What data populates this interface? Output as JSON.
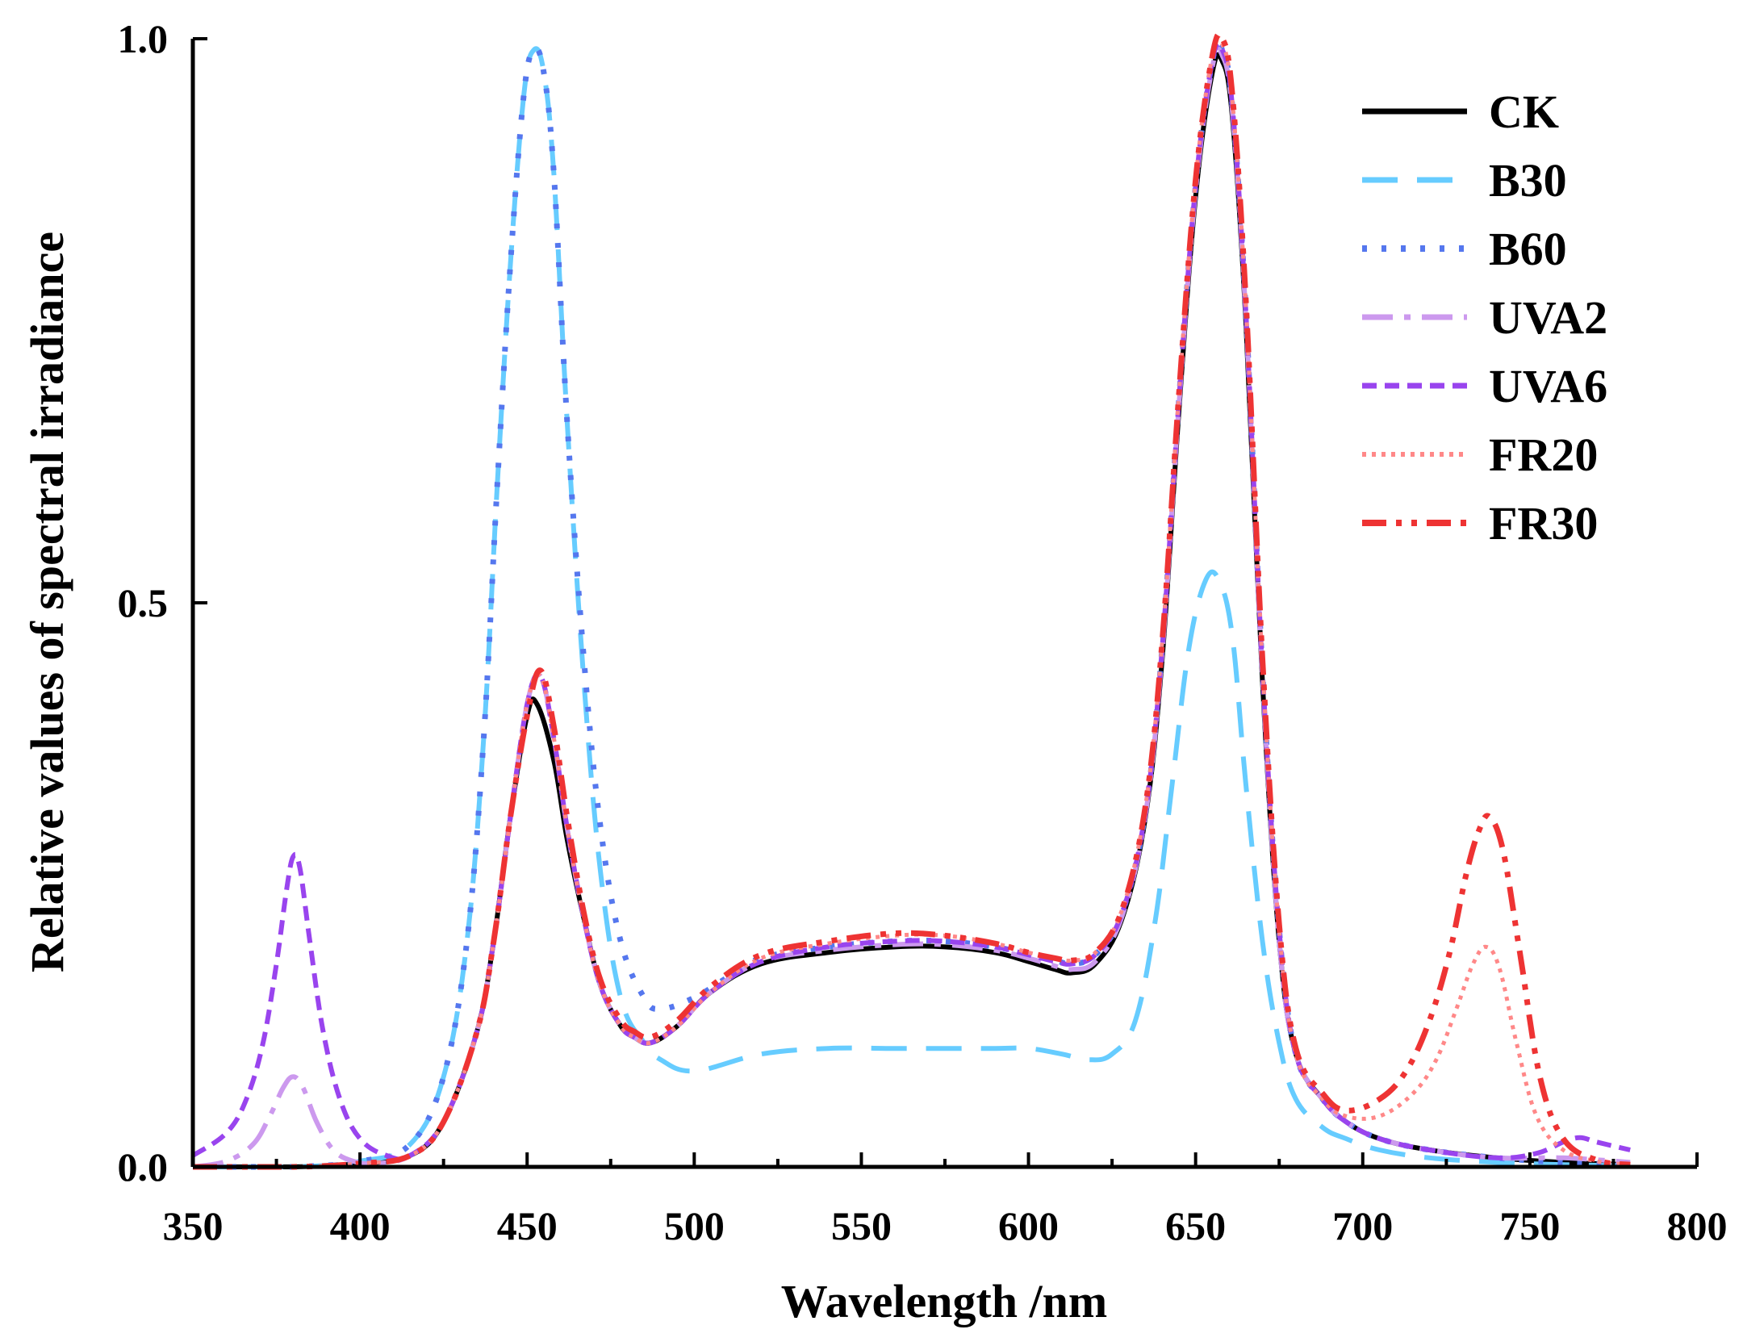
{
  "chart_data": {
    "type": "line",
    "title": "",
    "xlabel": "Wavelength /nm",
    "ylabel": "Relative values of spectral irradiance",
    "xlim": [
      350,
      800
    ],
    "ylim": [
      0,
      1
    ],
    "xticks": [
      350,
      400,
      450,
      500,
      550,
      600,
      650,
      700,
      750,
      800
    ],
    "xtick_labels": [
      "350",
      "400",
      "450",
      "500",
      "550",
      "600",
      "650",
      "700",
      "750",
      "800"
    ],
    "yticks": [
      0,
      0.5,
      1
    ],
    "ytick_labels": [
      "0.0",
      "0.5",
      "1.0"
    ],
    "grid": false,
    "legend_position": "top-right",
    "series": [
      {
        "name": "CK",
        "color": "#000000",
        "dash": "solid",
        "x": [
          350,
          380,
          400,
          415,
          425,
          435,
          440,
          445,
          450,
          453,
          458,
          462,
          467,
          472,
          478,
          482,
          487,
          495,
          505,
          520,
          540,
          560,
          575,
          590,
          600,
          608,
          613,
          620,
          628,
          635,
          640,
          645,
          650,
          655,
          658,
          661,
          665,
          670,
          675,
          680,
          688,
          695,
          705,
          720,
          740,
          760,
          780
        ],
        "y": [
          0,
          0,
          0.003,
          0.01,
          0.04,
          0.12,
          0.2,
          0.31,
          0.4,
          0.41,
          0.36,
          0.29,
          0.22,
          0.16,
          0.125,
          0.115,
          0.11,
          0.125,
          0.155,
          0.18,
          0.19,
          0.195,
          0.195,
          0.19,
          0.182,
          0.175,
          0.172,
          0.18,
          0.22,
          0.31,
          0.45,
          0.67,
          0.86,
          0.97,
          0.98,
          0.93,
          0.75,
          0.43,
          0.2,
          0.1,
          0.06,
          0.04,
          0.025,
          0.015,
          0.008,
          0.004,
          0.002
        ]
      },
      {
        "name": "B30",
        "color": "#66CCFF",
        "dash": "long-dash",
        "x": [
          350,
          380,
          400,
          415,
          425,
          432,
          437,
          441,
          445,
          449,
          452,
          455,
          458,
          462,
          467,
          472,
          478,
          485,
          490,
          500,
          520,
          540,
          560,
          575,
          590,
          600,
          610,
          618,
          625,
          632,
          638,
          643,
          648,
          653,
          657,
          661,
          665,
          670,
          675,
          680,
          688,
          695,
          705,
          720,
          740,
          760,
          780
        ],
        "y": [
          0,
          0,
          0.005,
          0.02,
          0.08,
          0.2,
          0.38,
          0.6,
          0.8,
          0.95,
          0.99,
          0.97,
          0.88,
          0.66,
          0.43,
          0.26,
          0.15,
          0.11,
          0.095,
          0.085,
          0.1,
          0.105,
          0.105,
          0.105,
          0.105,
          0.105,
          0.1,
          0.095,
          0.1,
          0.13,
          0.22,
          0.34,
          0.46,
          0.52,
          0.52,
          0.47,
          0.34,
          0.2,
          0.11,
          0.06,
          0.035,
          0.025,
          0.015,
          0.008,
          0.004,
          0.002,
          0.001
        ]
      },
      {
        "name": "B60",
        "color": "#5577EE",
        "dash": "dotted",
        "x": [
          350,
          380,
          400,
          415,
          425,
          432,
          437,
          441,
          445,
          449,
          452,
          455,
          458,
          462,
          467,
          472,
          478,
          485,
          490,
          500,
          510,
          520,
          540,
          560,
          575,
          590,
          600,
          608,
          613,
          620,
          628,
          635,
          640,
          645,
          650,
          655,
          658,
          661,
          665,
          670,
          675,
          680,
          688,
          695,
          705,
          720,
          740,
          760,
          780
        ],
        "y": [
          0,
          0,
          0.005,
          0.02,
          0.08,
          0.2,
          0.38,
          0.6,
          0.8,
          0.95,
          0.99,
          0.97,
          0.88,
          0.66,
          0.45,
          0.3,
          0.2,
          0.15,
          0.14,
          0.15,
          0.168,
          0.185,
          0.195,
          0.2,
          0.2,
          0.195,
          0.188,
          0.183,
          0.18,
          0.188,
          0.225,
          0.315,
          0.46,
          0.68,
          0.87,
          0.98,
          0.99,
          0.94,
          0.76,
          0.44,
          0.21,
          0.1,
          0.06,
          0.04,
          0.025,
          0.015,
          0.008,
          0.004,
          0.002
        ]
      },
      {
        "name": "UVA2",
        "color": "#CC99EE",
        "dash": "dash-dot",
        "x": [
          350,
          360,
          368,
          373,
          377,
          380,
          383,
          387,
          392,
          398,
          405,
          415,
          425,
          435,
          440,
          445,
          450,
          454,
          458,
          462,
          467,
          472,
          478,
          482,
          487,
          495,
          505,
          520,
          540,
          560,
          575,
          590,
          600,
          608,
          613,
          620,
          628,
          635,
          640,
          645,
          650,
          655,
          658,
          661,
          665,
          670,
          675,
          680,
          688,
          695,
          705,
          720,
          740,
          760,
          780
        ],
        "y": [
          0,
          0.005,
          0.02,
          0.045,
          0.07,
          0.08,
          0.07,
          0.04,
          0.015,
          0.005,
          0.003,
          0.01,
          0.04,
          0.12,
          0.2,
          0.31,
          0.41,
          0.435,
          0.38,
          0.3,
          0.22,
          0.16,
          0.125,
          0.115,
          0.11,
          0.125,
          0.155,
          0.182,
          0.192,
          0.197,
          0.197,
          0.192,
          0.185,
          0.178,
          0.175,
          0.182,
          0.222,
          0.312,
          0.455,
          0.675,
          0.865,
          0.975,
          0.985,
          0.935,
          0.755,
          0.435,
          0.2,
          0.1,
          0.06,
          0.04,
          0.025,
          0.015,
          0.008,
          0.008,
          0.004
        ]
      },
      {
        "name": "UVA6",
        "color": "#9944EE",
        "dash": "short-dash",
        "x": [
          350,
          360,
          366,
          371,
          375,
          378,
          380,
          382,
          385,
          389,
          394,
          400,
          408,
          415,
          425,
          435,
          440,
          445,
          450,
          454,
          458,
          462,
          467,
          472,
          478,
          482,
          487,
          495,
          505,
          520,
          540,
          560,
          575,
          590,
          600,
          608,
          613,
          620,
          628,
          635,
          640,
          645,
          650,
          655,
          658,
          661,
          665,
          670,
          675,
          680,
          688,
          695,
          705,
          720,
          740,
          752,
          760,
          765,
          770,
          780
        ],
        "y": [
          0.01,
          0.03,
          0.06,
          0.11,
          0.18,
          0.245,
          0.275,
          0.265,
          0.2,
          0.12,
          0.06,
          0.025,
          0.01,
          0.01,
          0.04,
          0.12,
          0.2,
          0.31,
          0.41,
          0.435,
          0.38,
          0.3,
          0.22,
          0.16,
          0.125,
          0.115,
          0.11,
          0.125,
          0.155,
          0.182,
          0.195,
          0.2,
          0.2,
          0.195,
          0.188,
          0.182,
          0.18,
          0.188,
          0.225,
          0.315,
          0.46,
          0.68,
          0.87,
          0.98,
          0.99,
          0.94,
          0.76,
          0.44,
          0.21,
          0.1,
          0.06,
          0.04,
          0.025,
          0.015,
          0.008,
          0.012,
          0.022,
          0.026,
          0.022,
          0.015
        ]
      },
      {
        "name": "FR20",
        "color": "#FF8888",
        "dash": "dense-dotted",
        "x": [
          350,
          380,
          400,
          415,
          425,
          435,
          440,
          445,
          450,
          454,
          458,
          462,
          467,
          472,
          478,
          482,
          487,
          495,
          505,
          520,
          540,
          560,
          575,
          590,
          600,
          608,
          613,
          620,
          628,
          635,
          640,
          645,
          650,
          655,
          658,
          661,
          665,
          670,
          675,
          680,
          688,
          695,
          705,
          715,
          722,
          728,
          733,
          737,
          741,
          746,
          752,
          760,
          770,
          780
        ],
        "y": [
          0,
          0,
          0.003,
          0.01,
          0.04,
          0.12,
          0.2,
          0.31,
          0.41,
          0.435,
          0.38,
          0.3,
          0.22,
          0.16,
          0.125,
          0.115,
          0.11,
          0.125,
          0.155,
          0.185,
          0.198,
          0.205,
          0.205,
          0.198,
          0.19,
          0.185,
          0.183,
          0.19,
          0.228,
          0.32,
          0.465,
          0.685,
          0.875,
          0.985,
          0.995,
          0.945,
          0.765,
          0.445,
          0.21,
          0.1,
          0.06,
          0.045,
          0.045,
          0.065,
          0.095,
          0.14,
          0.18,
          0.195,
          0.175,
          0.11,
          0.045,
          0.015,
          0.005,
          0.002
        ]
      },
      {
        "name": "FR30",
        "color": "#EE3333",
        "dash": "dash-dot-dot",
        "x": [
          350,
          380,
          400,
          415,
          425,
          435,
          440,
          445,
          450,
          454,
          458,
          462,
          467,
          472,
          478,
          482,
          487,
          495,
          505,
          520,
          540,
          560,
          575,
          590,
          600,
          608,
          613,
          620,
          628,
          635,
          640,
          645,
          650,
          655,
          658,
          661,
          665,
          670,
          675,
          680,
          688,
          695,
          705,
          713,
          720,
          726,
          731,
          735,
          738,
          742,
          747,
          753,
          760,
          770,
          780
        ],
        "y": [
          0,
          0,
          0.003,
          0.01,
          0.04,
          0.12,
          0.2,
          0.31,
          0.4,
          0.44,
          0.39,
          0.31,
          0.225,
          0.165,
          0.13,
          0.12,
          0.115,
          0.13,
          0.16,
          0.188,
          0.2,
          0.207,
          0.205,
          0.198,
          0.19,
          0.185,
          0.183,
          0.19,
          0.228,
          0.32,
          0.465,
          0.685,
          0.875,
          0.985,
          1.0,
          0.95,
          0.77,
          0.45,
          0.215,
          0.105,
          0.065,
          0.05,
          0.06,
          0.085,
          0.13,
          0.19,
          0.26,
          0.3,
          0.31,
          0.28,
          0.19,
          0.08,
          0.025,
          0.006,
          0.002
        ]
      }
    ]
  }
}
